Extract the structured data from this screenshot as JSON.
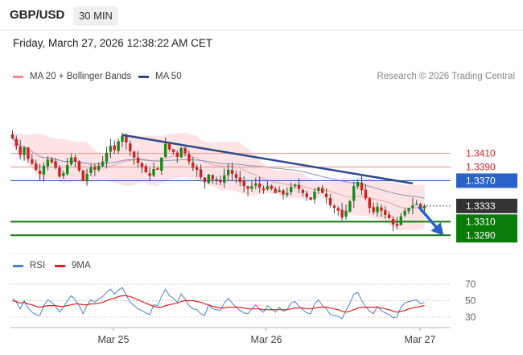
{
  "header": {
    "pair": "GBP/USD",
    "timeframe": "30 MIN"
  },
  "datetime": "Friday, March 27, 2026 12:38:22 AM CET",
  "legend": {
    "bollinger": {
      "label": "MA 20 + Bollinger Bands",
      "color": "#f28b8b"
    },
    "ma50": {
      "label": "MA 50",
      "color": "#2e4a8a"
    },
    "research": "Research © 2026 Trading Central"
  },
  "rsi_legend": {
    "rsi": {
      "label": "RSI",
      "color": "#4a7fd4"
    },
    "ma9": {
      "label": "9MA",
      "color": "#e02020"
    }
  },
  "chart_data": [
    {
      "type": "candlestick",
      "ylim": [
        1.3275,
        1.3505
      ],
      "x_ticks": [
        "Mar 25",
        "Mar 26",
        "Mar 27"
      ],
      "levels": [
        {
          "price": 1.341,
          "label": "1.3410",
          "style": "resistance-light",
          "color": "#f2a0a0",
          "text_color": "#e02020"
        },
        {
          "price": 1.339,
          "label": "1.3390",
          "style": "resistance-light",
          "color": "#f2a0a0",
          "text_color": "#e02020"
        },
        {
          "price": 1.337,
          "label": "1.3370",
          "style": "pivot",
          "color": "#2a62c9",
          "text_color": "#ffffff"
        },
        {
          "price": 1.3333,
          "label": "1.3333",
          "style": "last-price",
          "color": "#333333",
          "text_color": "#ffffff"
        },
        {
          "price": 1.331,
          "label": "1.3310",
          "style": "support",
          "color": "#0a7a0a",
          "text_color": "#ffffff"
        },
        {
          "price": 1.329,
          "label": "1.3290",
          "style": "support",
          "color": "#0a7a0a",
          "text_color": "#ffffff"
        }
      ],
      "trendline": {
        "from": {
          "bar": 28,
          "price": 1.3437
        },
        "to": {
          "bar": 102,
          "price": 1.3366
        }
      },
      "arrow": {
        "from": {
          "bar": 104,
          "price": 1.3332
        },
        "to": {
          "bar": 110,
          "price": 1.3292
        }
      },
      "bar_count": 106,
      "closes": [
        1.3432,
        1.3421,
        1.3408,
        1.3418,
        1.3402,
        1.3395,
        1.3386,
        1.338,
        1.3392,
        1.3401,
        1.3397,
        1.3389,
        1.3376,
        1.3381,
        1.3393,
        1.3404,
        1.3398,
        1.3385,
        1.337,
        1.338,
        1.339,
        1.3386,
        1.3392,
        1.3398,
        1.3411,
        1.3421,
        1.3415,
        1.3428,
        1.3436,
        1.3426,
        1.3413,
        1.3404,
        1.3396,
        1.339,
        1.3382,
        1.3377,
        1.3387,
        1.3386,
        1.3404,
        1.3424,
        1.3416,
        1.3412,
        1.3405,
        1.3418,
        1.341,
        1.3398,
        1.3389,
        1.3386,
        1.3375,
        1.3368,
        1.3379,
        1.3372,
        1.337,
        1.3368,
        1.3378,
        1.3386,
        1.338,
        1.3374,
        1.3368,
        1.3362,
        1.3358,
        1.3362,
        1.3366,
        1.336,
        1.3356,
        1.3362,
        1.3358,
        1.3352,
        1.3356,
        1.335,
        1.3352,
        1.3361,
        1.3364,
        1.3358,
        1.3352,
        1.3346,
        1.3342,
        1.3354,
        1.336,
        1.3352,
        1.3346,
        1.3334,
        1.333,
        1.3326,
        1.3316,
        1.3326,
        1.334,
        1.3362,
        1.3368,
        1.3356,
        1.3344,
        1.333,
        1.3324,
        1.3332,
        1.3326,
        1.332,
        1.3315,
        1.3306,
        1.3304,
        1.3318,
        1.3326,
        1.333,
        1.3334,
        1.3336,
        1.333,
        1.3333
      ]
    },
    {
      "type": "line",
      "title": "RSI",
      "ylim": [
        22,
        78
      ],
      "y_ticks": [
        70,
        50,
        30
      ],
      "series": [
        {
          "name": "RSI",
          "values": [
            53,
            48,
            40,
            50,
            41,
            36,
            33,
            32,
            44,
            51,
            48,
            43,
            36,
            42,
            50,
            56,
            51,
            44,
            34,
            44,
            51,
            48,
            52,
            55,
            60,
            64,
            58,
            63,
            66,
            57,
            48,
            44,
            40,
            38,
            35,
            33,
            45,
            44,
            55,
            64,
            56,
            53,
            48,
            58,
            52,
            44,
            40,
            39,
            34,
            32,
            45,
            40,
            39,
            38,
            47,
            53,
            47,
            42,
            38,
            35,
            34,
            40,
            45,
            39,
            36,
            44,
            40,
            36,
            42,
            37,
            39,
            47,
            49,
            43,
            39,
            35,
            34,
            46,
            51,
            44,
            40,
            33,
            32,
            31,
            28,
            38,
            47,
            58,
            60,
            50,
            43,
            37,
            34,
            43,
            38,
            35,
            33,
            29,
            30,
            42,
            47,
            49,
            50,
            51,
            46,
            48
          ]
        },
        {
          "name": "9MA",
          "values": [
            50,
            49,
            47,
            48,
            46,
            45,
            43,
            42,
            43,
            44,
            44,
            44,
            43,
            43,
            44,
            45,
            46,
            46,
            45,
            45,
            46,
            46,
            47,
            48,
            50,
            52,
            53,
            55,
            56,
            56,
            55,
            53,
            51,
            49,
            47,
            45,
            43,
            42,
            42,
            44,
            45,
            46,
            47,
            49,
            50,
            50,
            50,
            49,
            48,
            46,
            45,
            43,
            42,
            41,
            41,
            42,
            42,
            42,
            42,
            41,
            40,
            40,
            40,
            40,
            39,
            39,
            39,
            39,
            39,
            39,
            39,
            40,
            41,
            41,
            41,
            40,
            40,
            41,
            42,
            42,
            42,
            41,
            40,
            39,
            37,
            36,
            37,
            39,
            41,
            42,
            42,
            42,
            42,
            42,
            41,
            40,
            39,
            37,
            36,
            37,
            38,
            40,
            41,
            42,
            43,
            44
          ]
        }
      ]
    }
  ]
}
